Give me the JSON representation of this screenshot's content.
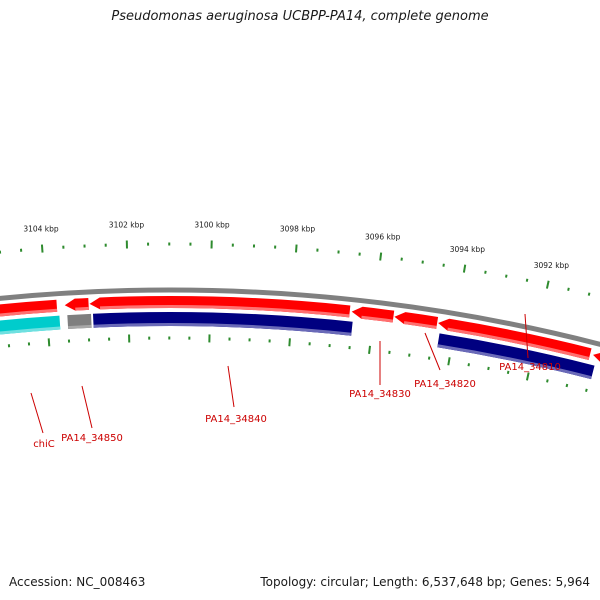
{
  "title": "Pseudomonas aeruginosa UCBPP-PA14, complete genome",
  "footer": {
    "accession": "Accession: NC_008463",
    "topology": "Topology: circular; Length: 6,537,648 bp; Genes: 5,964"
  },
  "ticks": [
    {
      "pos_kbp": 3092,
      "label": "3092 kbp"
    },
    {
      "pos_kbp": 3094,
      "label": "3094 kbp"
    },
    {
      "pos_kbp": 3096,
      "label": "3096 kbp"
    },
    {
      "pos_kbp": 3098,
      "label": "3098 kbp"
    },
    {
      "pos_kbp": 3100,
      "label": "3100 kbp"
    },
    {
      "pos_kbp": 3102,
      "label": "3102 kbp"
    },
    {
      "pos_kbp": 3104,
      "label": "3104 kbp"
    }
  ],
  "genes": [
    {
      "name": "PA14_34810",
      "label": "PA14_34810"
    },
    {
      "name": "PA14_34820",
      "label": "PA14_34820"
    },
    {
      "name": "PA14_34830",
      "label": "PA14_34830"
    },
    {
      "name": "PA14_34840",
      "label": "PA14_34840"
    },
    {
      "name": "PA14_34850",
      "label": "PA14_34850"
    },
    {
      "name": "chiC",
      "label": "chiC"
    }
  ],
  "colors": {
    "backbone": "#808080",
    "cds_forward": "#ff0000",
    "cds_forward_shade": "#ff7070",
    "gene_track": "#000080",
    "gene_track_shade": "#6a6ab8",
    "rna_track": "#00cccc",
    "pseudo_track": "#7f7f7f",
    "tick": "#2e8b2e",
    "label": "#cc0000"
  }
}
